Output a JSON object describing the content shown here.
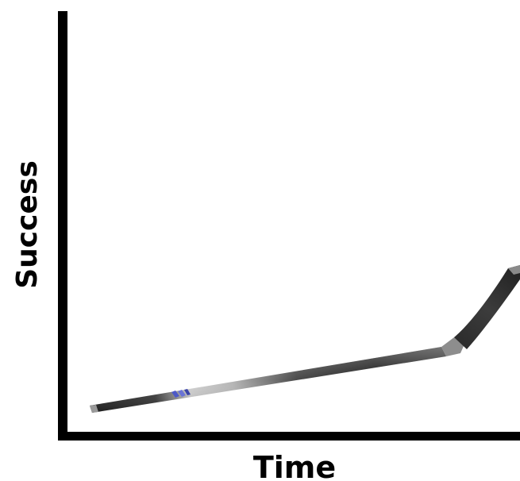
{
  "diagram": {
    "x_axis_label": "Time",
    "y_axis_label": "Success",
    "colors": {
      "axis": "#000000",
      "stick_shaft_dark": "#1c1c1c",
      "stick_shaft_light": "#c9c9c9",
      "stick_blade_gray": "#8d8d8d",
      "stick_tape_blue": "#4d59c7",
      "background": "#ffffff"
    }
  }
}
